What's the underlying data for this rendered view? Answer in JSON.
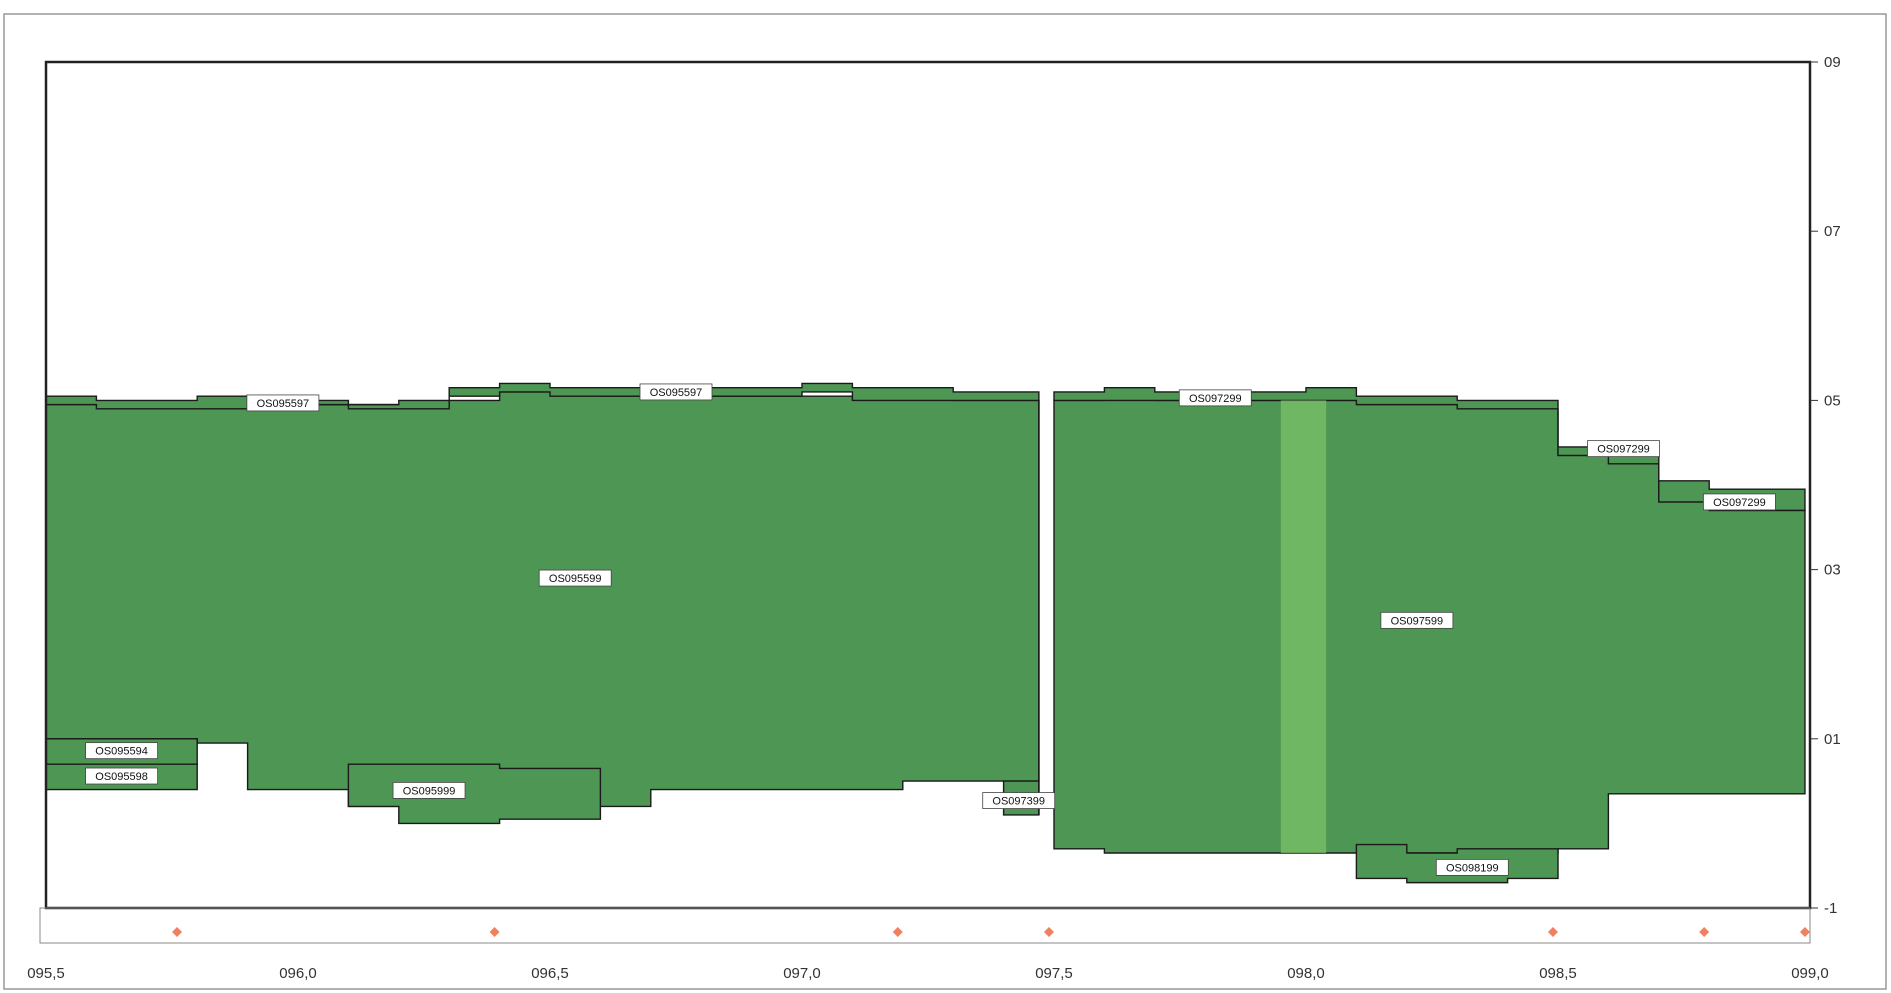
{
  "chart_data": {
    "type": "area",
    "title": "",
    "xlabel": "",
    "ylabel": "",
    "xlim": [
      95.5,
      99.0
    ],
    "ylim": [
      -1,
      9
    ],
    "grid": false,
    "legend": "none",
    "x_ticks": [
      "095,5",
      "096,0",
      "096,5",
      "097,0",
      "097,5",
      "098,0",
      "098,5",
      "099,0"
    ],
    "y_ticks": [
      {
        "value": 9,
        "label": "09"
      },
      {
        "value": 7,
        "label": "07"
      },
      {
        "value": 5,
        "label": "05"
      },
      {
        "value": 3,
        "label": "03"
      },
      {
        "value": 1,
        "label": "01"
      },
      {
        "value": -1,
        "label": "-1"
      }
    ],
    "colors": {
      "fill": "#4d9653",
      "fill_light": "#7cc26a",
      "outline": "#1a1a1a",
      "marker": "#f08060",
      "frame": "#222222"
    },
    "segments": [
      {
        "name": "OS095599",
        "profile": [
          [
            95.5,
            1.0,
            5.0
          ],
          [
            95.6,
            1.0,
            4.95
          ],
          [
            95.8,
            0.95,
            4.95
          ],
          [
            95.9,
            0.4,
            4.95
          ],
          [
            96.0,
            0.4,
            4.95
          ],
          [
            96.1,
            0.2,
            4.95
          ],
          [
            96.2,
            0.2,
            4.95
          ],
          [
            96.3,
            0.2,
            5.0
          ],
          [
            96.4,
            0.2,
            5.1
          ],
          [
            96.5,
            0.2,
            5.1
          ],
          [
            96.6,
            0.2,
            5.05
          ],
          [
            96.7,
            0.4,
            5.05
          ],
          [
            96.8,
            0.4,
            5.05
          ],
          [
            96.9,
            0.4,
            5.05
          ],
          [
            97.0,
            0.4,
            5.05
          ],
          [
            97.1,
            0.4,
            5.05
          ],
          [
            97.2,
            0.5,
            5.05
          ],
          [
            97.3,
            0.5,
            5.0
          ],
          [
            97.47,
            0.5,
            5.0
          ]
        ]
      },
      {
        "name": "OS095597",
        "profile": [
          [
            95.5,
            4.95,
            5.05
          ],
          [
            95.6,
            4.9,
            5.0
          ],
          [
            95.8,
            4.9,
            5.05
          ],
          [
            95.9,
            4.9,
            5.0
          ],
          [
            96.0,
            4.95,
            5.0
          ],
          [
            96.1,
            4.9,
            4.95
          ],
          [
            96.2,
            4.9,
            5.0
          ],
          [
            96.3,
            5.05,
            5.15
          ],
          [
            96.4,
            5.1,
            5.2
          ],
          [
            96.5,
            5.05,
            5.15
          ],
          [
            96.6,
            5.05,
            5.15
          ],
          [
            96.7,
            5.05,
            5.15
          ],
          [
            96.8,
            5.05,
            5.15
          ],
          [
            96.9,
            5.05,
            5.15
          ],
          [
            97.0,
            5.1,
            5.2
          ],
          [
            97.1,
            5.0,
            5.15
          ],
          [
            97.2,
            5.0,
            5.15
          ],
          [
            97.3,
            5.0,
            5.1
          ],
          [
            97.47,
            5.0,
            5.1
          ]
        ]
      },
      {
        "name": "OS095594",
        "profile": [
          [
            95.5,
            0.7,
            1.0
          ],
          [
            95.8,
            0.7,
            1.0
          ]
        ]
      },
      {
        "name": "OS095598",
        "profile": [
          [
            95.5,
            0.4,
            0.7
          ],
          [
            95.8,
            0.4,
            0.7
          ]
        ]
      },
      {
        "name": "OS095999",
        "profile": [
          [
            96.1,
            0.2,
            0.7
          ],
          [
            96.2,
            0.0,
            0.7
          ],
          [
            96.3,
            0.0,
            0.7
          ],
          [
            96.4,
            0.05,
            0.65
          ],
          [
            96.5,
            0.05,
            0.65
          ],
          [
            96.6,
            0.05,
            0.65
          ]
        ]
      },
      {
        "name": "OS097399",
        "profile": [
          [
            97.4,
            0.1,
            0.5
          ],
          [
            97.47,
            0.1,
            0.5
          ]
        ]
      },
      {
        "name": "OS097599",
        "profile": [
          [
            97.5,
            -0.3,
            5.0
          ],
          [
            97.6,
            -0.35,
            5.05
          ],
          [
            97.7,
            -0.35,
            5.0
          ],
          [
            97.8,
            -0.35,
            5.0
          ],
          [
            97.9,
            -0.35,
            5.0
          ],
          [
            98.0,
            -0.35,
            5.0
          ],
          [
            98.1,
            -0.35,
            5.0
          ],
          [
            98.2,
            -0.35,
            5.0
          ],
          [
            98.3,
            -0.35,
            4.9
          ],
          [
            98.4,
            -0.35,
            4.9
          ],
          [
            98.5,
            -0.3,
            4.35
          ],
          [
            98.6,
            0.35,
            4.35
          ],
          [
            98.7,
            0.35,
            3.8
          ],
          [
            98.8,
            0.35,
            3.7
          ],
          [
            98.99,
            0.35,
            3.7
          ]
        ]
      },
      {
        "name": "OS097299",
        "profile": [
          [
            97.5,
            5.0,
            5.1
          ],
          [
            97.6,
            5.0,
            5.15
          ],
          [
            97.7,
            5.0,
            5.1
          ],
          [
            97.8,
            5.0,
            5.1
          ],
          [
            97.9,
            5.0,
            5.1
          ],
          [
            98.0,
            5.0,
            5.15
          ],
          [
            98.1,
            4.95,
            5.05
          ],
          [
            98.2,
            4.95,
            5.05
          ],
          [
            98.3,
            4.9,
            5.0
          ],
          [
            98.4,
            4.9,
            5.0
          ],
          [
            98.5,
            4.35,
            4.45
          ],
          [
            98.6,
            4.35,
            4.25
          ],
          [
            98.7,
            3.8,
            4.05
          ],
          [
            98.8,
            3.7,
            3.95
          ],
          [
            98.99,
            3.7,
            3.95
          ]
        ]
      },
      {
        "name": "OS098199",
        "profile": [
          [
            98.1,
            -0.65,
            -0.25
          ],
          [
            98.2,
            -0.7,
            -0.35
          ],
          [
            98.3,
            -0.7,
            -0.3
          ],
          [
            98.4,
            -0.65,
            -0.3
          ],
          [
            98.5,
            -0.65,
            -0.3
          ]
        ]
      }
    ],
    "labels": [
      {
        "text": "OS095597",
        "x": 95.97,
        "y": 4.97
      },
      {
        "text": "OS095597",
        "x": 96.75,
        "y": 5.1
      },
      {
        "text": "OS097299",
        "x": 97.82,
        "y": 5.03
      },
      {
        "text": "OS097299",
        "x": 98.63,
        "y": 4.43
      },
      {
        "text": "OS097299",
        "x": 98.86,
        "y": 3.8
      },
      {
        "text": "OS095599",
        "x": 96.55,
        "y": 2.9
      },
      {
        "text": "OS097599",
        "x": 98.22,
        "y": 2.4
      },
      {
        "text": "OS095594",
        "x": 95.65,
        "y": 0.86
      },
      {
        "text": "OS095598",
        "x": 95.65,
        "y": 0.56
      },
      {
        "text": "OS095999",
        "x": 96.26,
        "y": 0.39
      },
      {
        "text": "OS097399",
        "x": 97.43,
        "y": 0.27
      },
      {
        "text": "OS098199",
        "x": 98.33,
        "y": -0.52
      }
    ],
    "markers": [
      95.76,
      96.39,
      97.19,
      97.49,
      98.49,
      98.79,
      98.99
    ]
  }
}
